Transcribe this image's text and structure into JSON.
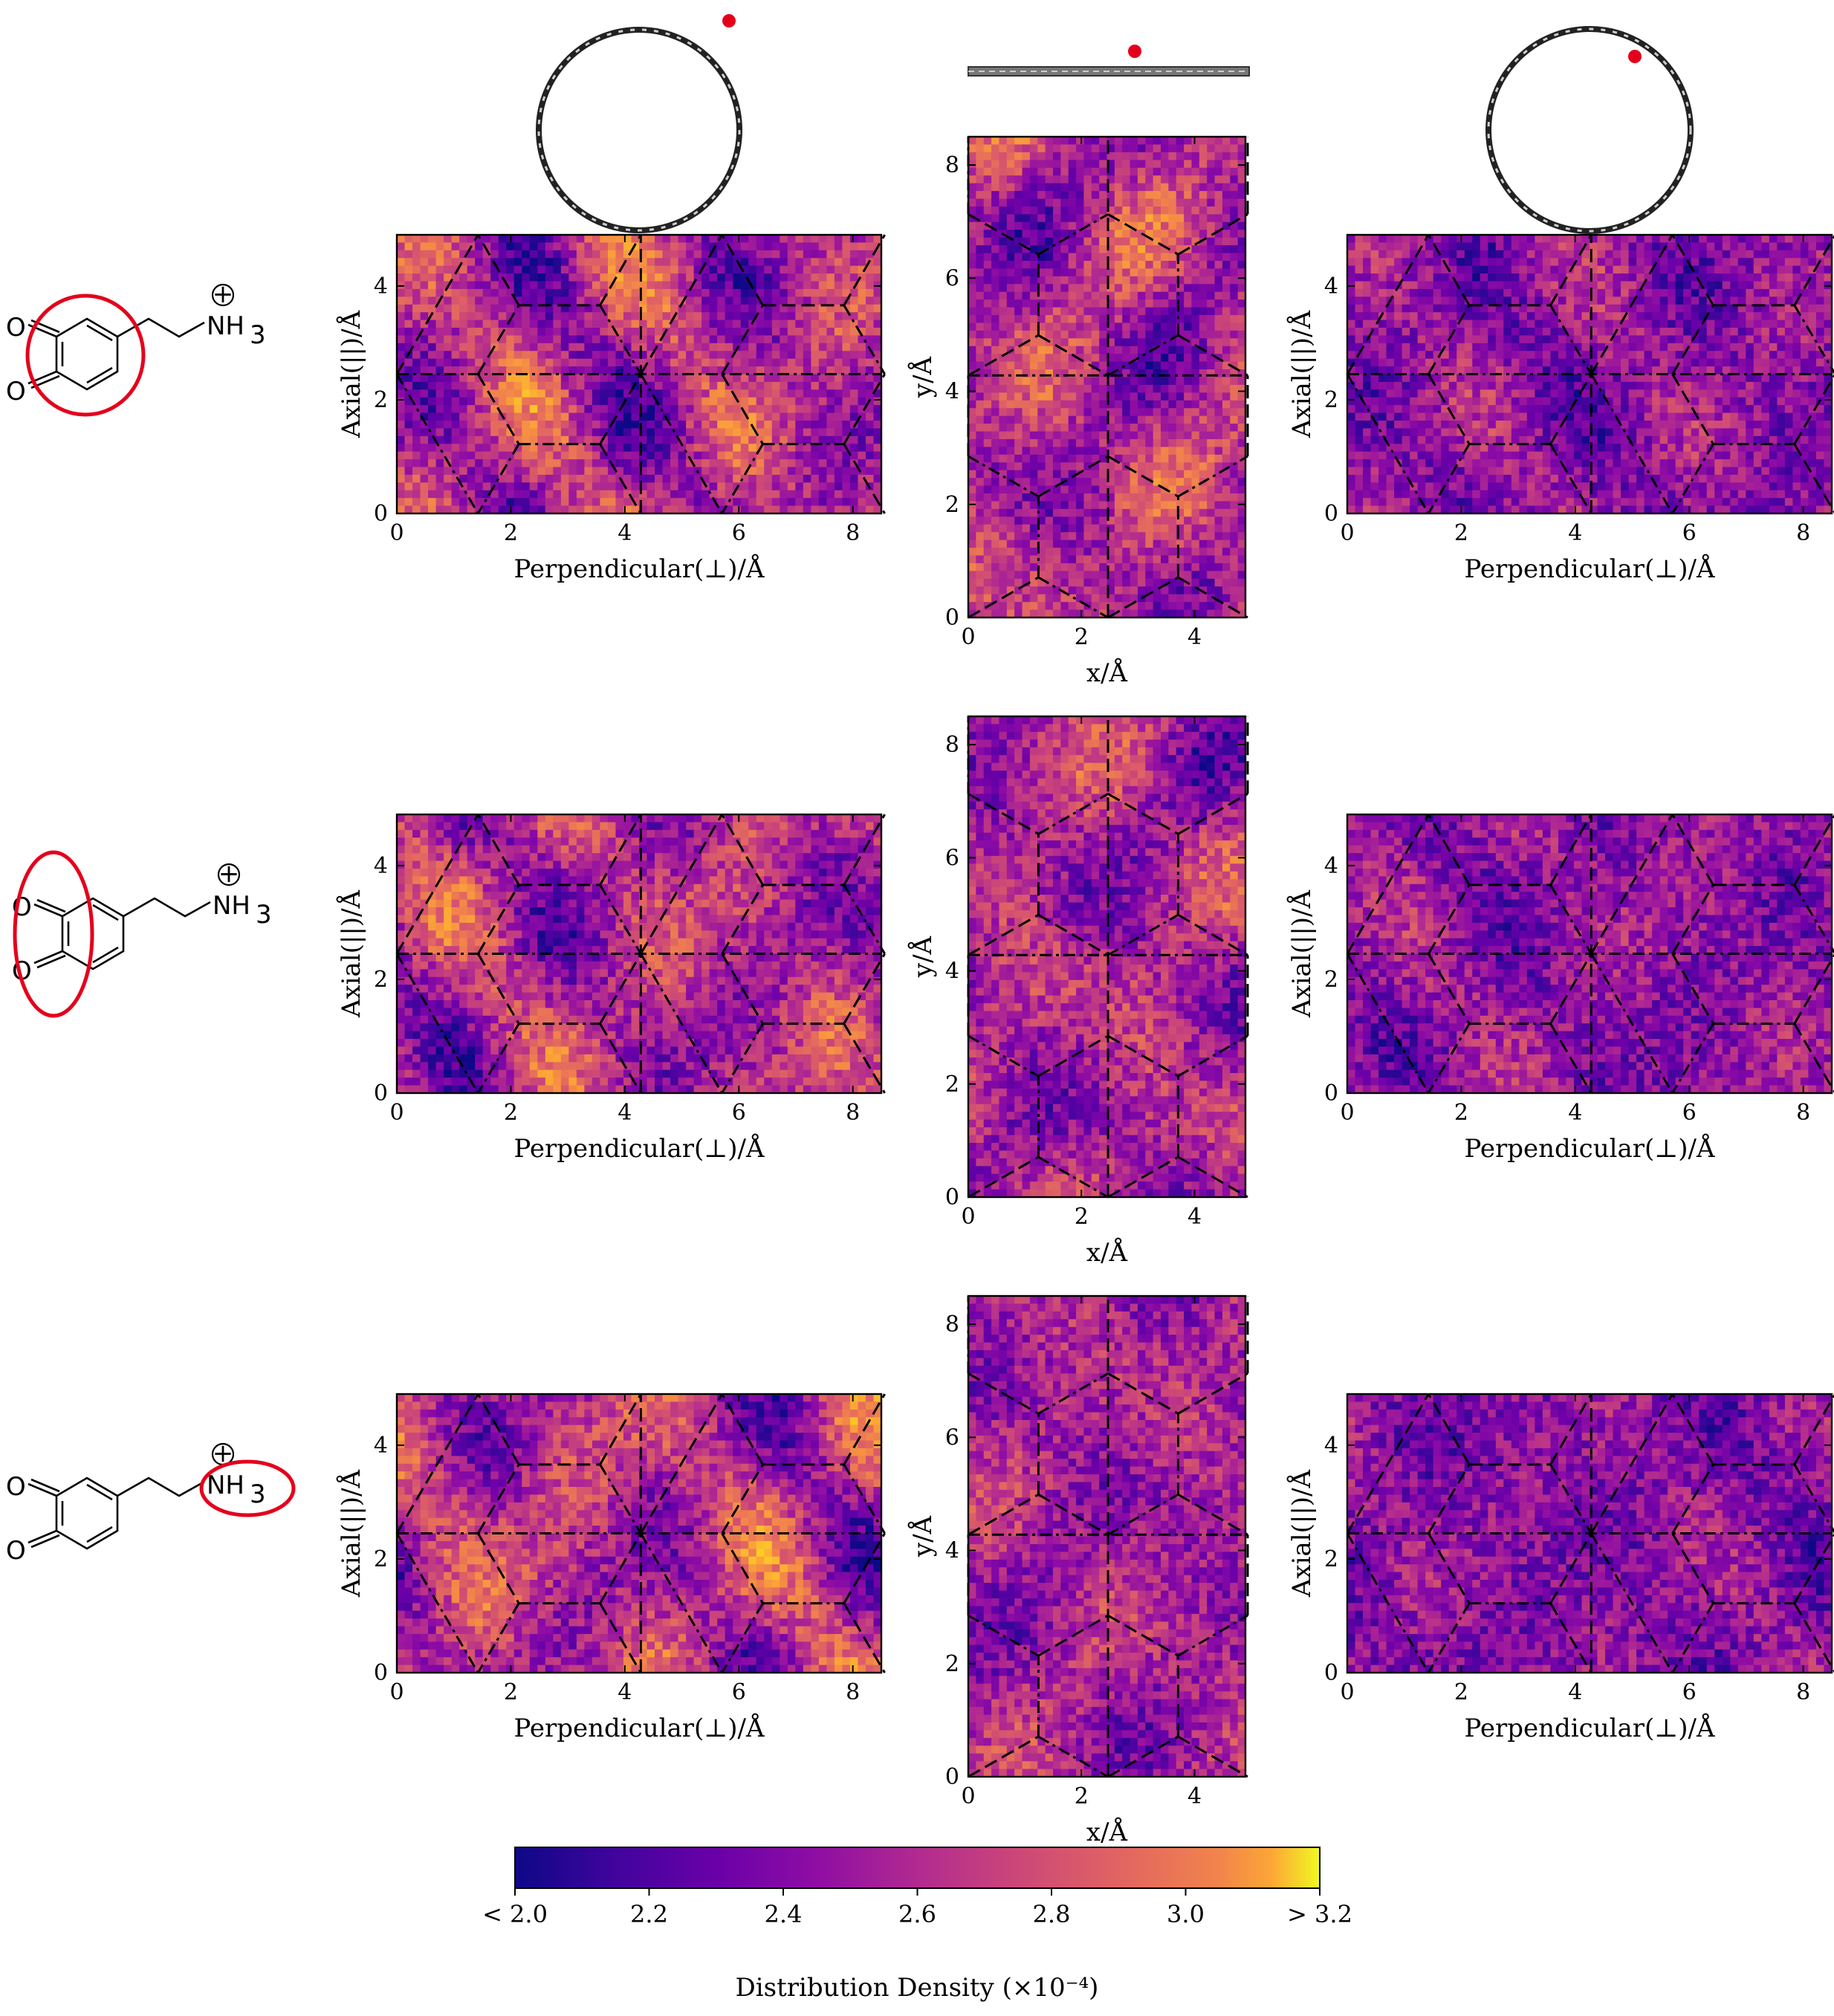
{
  "chart_data": {
    "type": "heatmap",
    "colormap": "plasma",
    "column_order": [
      "nanotube-small",
      "graphene",
      "nanotube-large"
    ],
    "row_order": [
      "catechol-ring",
      "quinone-oxygens",
      "ammonium-group"
    ],
    "panels": {
      "nanotube-small": {
        "xlabel": "Perpendicular(⊥)/Å",
        "ylabel": "Axial(||)/Å",
        "xlim": [
          0,
          8.5
        ],
        "ylim": [
          0,
          4.9
        ],
        "xticks": [
          "0",
          "2",
          "4",
          "6",
          "8"
        ],
        "yticks": [
          "0",
          "2",
          "4"
        ]
      },
      "graphene": {
        "xlabel": "x/Å",
        "ylabel": "y/Å",
        "xlim": [
          0,
          4.9
        ],
        "ylim": [
          0,
          8.5
        ],
        "xticks": [
          "0",
          "2",
          "4"
        ],
        "yticks": [
          "0",
          "2",
          "4",
          "6",
          "8"
        ]
      },
      "nanotube-large": {
        "xlabel": "Perpendicular(⊥)/Å",
        "ylabel": "Axial(||)/Å",
        "xlim": [
          0,
          8.5
        ],
        "ylim": [
          0,
          4.9
        ],
        "xticks": [
          "0",
          "2",
          "4",
          "6",
          "8"
        ],
        "yticks": [
          "0",
          "2",
          "4"
        ]
      }
    },
    "colorbar": {
      "label": "Distribution Density (×10⁻⁴)",
      "range": [
        2.0,
        3.2
      ],
      "tick_values": [
        2.0,
        2.2,
        2.4,
        2.6,
        2.8,
        3.0,
        3.2
      ],
      "tick_labels": [
        "< 2.0",
        "2.2",
        "2.4",
        "2.6",
        "2.8",
        "3.0",
        "> 3.2"
      ]
    }
  },
  "molecule": {
    "oxygen": "O",
    "ammonium": "NH",
    "ammonium_sub": "3",
    "charge": "+"
  },
  "colors": {
    "highlight": "#e4001b",
    "ink": "#000000"
  }
}
